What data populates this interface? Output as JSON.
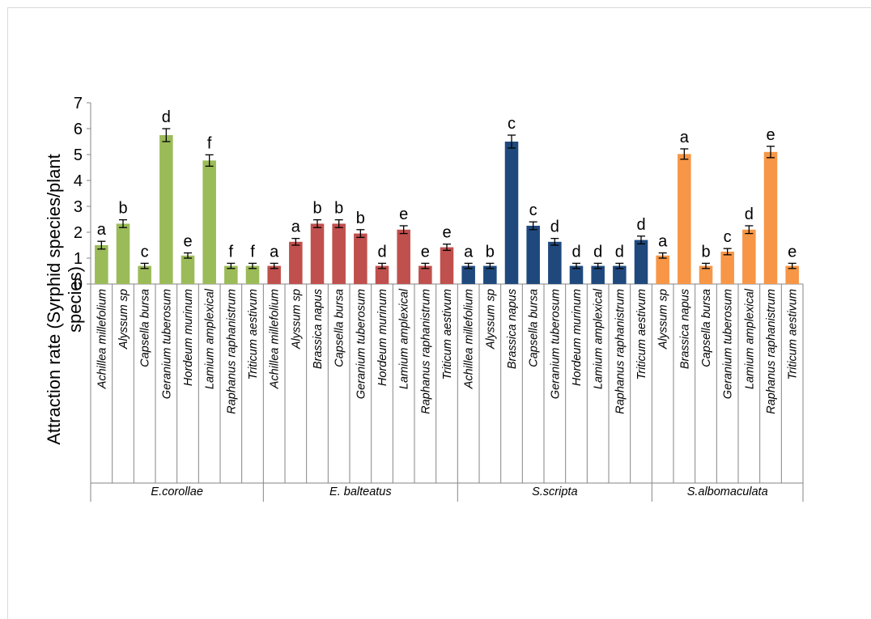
{
  "chart_data": {
    "type": "bar",
    "ylabel_lines": [
      "Attraction  rate (Syrphid species/plant",
      "species)"
    ],
    "ylim": [
      0,
      7
    ],
    "yticks": [
      0,
      1,
      2,
      3,
      4,
      5,
      6,
      7
    ],
    "grid": false,
    "legend": "none",
    "groups": [
      {
        "name": "E.corollae",
        "color": "#9bbb59",
        "categories": [
          "Achillea millefolium",
          "Alyssum sp",
          "Capsella bursa",
          "Geranium tuberosum",
          "Hordeum murinum",
          "Lamium amplexical",
          "Raphanus raphanistrum",
          "Triticum aestivum"
        ],
        "values": [
          1.5,
          2.33,
          0.7,
          5.75,
          1.1,
          4.77,
          0.7,
          0.7
        ],
        "errors": [
          0.15,
          0.15,
          0.1,
          0.25,
          0.1,
          0.22,
          0.1,
          0.1
        ],
        "letters": [
          "a",
          "b",
          "c",
          "d",
          "e",
          "f",
          "f",
          "f"
        ]
      },
      {
        "name": "E. balteatus",
        "color": "#c0504d",
        "categories": [
          "Achillea millefolium",
          "Alyssum sp",
          "Brassica napus",
          "Capsella bursa",
          "Geranium tuberosum",
          "Hordeum murinum",
          "Lamium amplexical",
          "Raphanus raphanistrum",
          "Triticum aestivum"
        ],
        "values": [
          0.7,
          1.63,
          2.33,
          2.33,
          1.95,
          0.7,
          2.1,
          0.7,
          1.42
        ],
        "errors": [
          0.1,
          0.13,
          0.15,
          0.15,
          0.15,
          0.1,
          0.15,
          0.1,
          0.12
        ],
        "letters": [
          "a",
          "a",
          "b",
          "b",
          "b",
          "d",
          "e",
          "e",
          "e"
        ]
      },
      {
        "name": "S.scripta",
        "color": "#1f497d",
        "categories": [
          "Achillea millefolium",
          "Alyssum sp",
          "Brassica napus",
          "Capsella bursa",
          "Geranium tuberosum",
          "Hordeum murinum",
          "Lamium amplexical",
          "Raphanus raphanistrum",
          "Triticum aestivum"
        ],
        "values": [
          0.7,
          0.7,
          5.5,
          2.25,
          1.63,
          0.7,
          0.7,
          0.7,
          1.7
        ],
        "errors": [
          0.1,
          0.1,
          0.25,
          0.15,
          0.13,
          0.1,
          0.1,
          0.1,
          0.15
        ],
        "letters": [
          "a",
          "b",
          "c",
          "c",
          "d",
          "d",
          "d",
          "d",
          "d"
        ]
      },
      {
        "name": "S.albomaculata",
        "color": "#f79646",
        "categories": [
          "Alyssum sp",
          "Brassica napus",
          "Capsella bursa",
          "Geranium tuberosum",
          "Lamium amplexical",
          "Raphanus raphanistrum",
          "Triticum aestivum"
        ],
        "values": [
          1.1,
          5.02,
          0.7,
          1.25,
          2.1,
          5.1,
          0.7
        ],
        "errors": [
          0.1,
          0.2,
          0.1,
          0.12,
          0.15,
          0.22,
          0.1
        ],
        "letters": [
          "a",
          "a",
          "b",
          "c",
          "d",
          "e",
          "e"
        ]
      }
    ]
  }
}
